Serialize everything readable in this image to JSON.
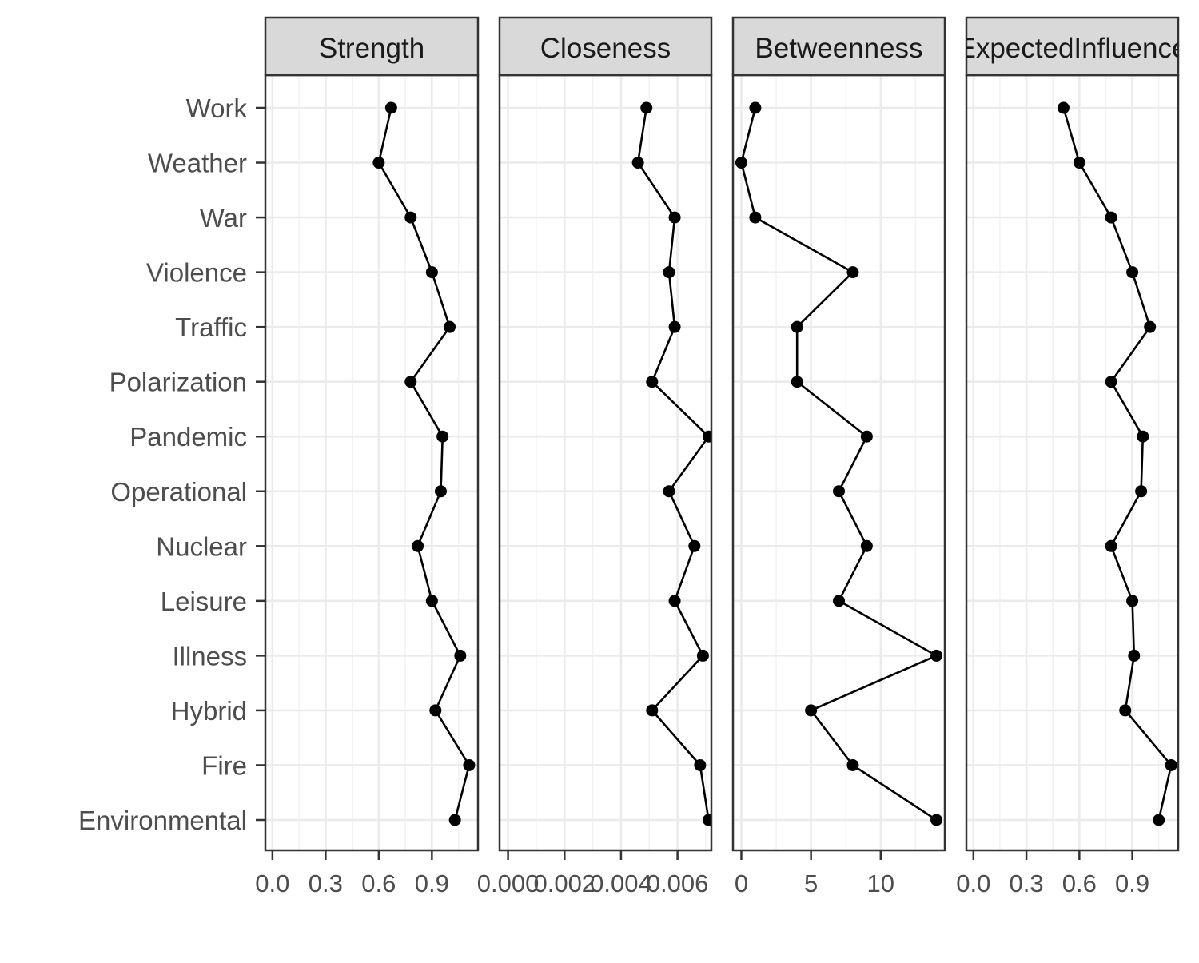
{
  "chart_data": {
    "type": "line",
    "orientation": "horizontal-facets",
    "categories": [
      "Work",
      "Weather",
      "War",
      "Violence",
      "Traffic",
      "Polarization",
      "Pandemic",
      "Operational",
      "Nuclear",
      "Leisure",
      "Illness",
      "Hybrid",
      "Fire",
      "Environmental"
    ],
    "panels": [
      {
        "title": "Strength",
        "xlim": [
          -0.04,
          1.16
        ],
        "ticks": [
          0.0,
          0.3,
          0.6,
          0.9
        ],
        "tick_labels": [
          "0.0",
          "0.3",
          "0.6",
          "0.9"
        ],
        "values": [
          0.67,
          0.6,
          0.78,
          0.9,
          1.0,
          0.78,
          0.96,
          0.95,
          0.82,
          0.9,
          1.06,
          0.92,
          1.11,
          1.03
        ]
      },
      {
        "title": "Closeness",
        "xlim": [
          -0.0003,
          0.0072
        ],
        "ticks": [
          0.0,
          0.002,
          0.004,
          0.006
        ],
        "tick_labels": [
          "0.000",
          "0.002",
          "0.004",
          "0.006"
        ],
        "values": [
          0.0049,
          0.0046,
          0.0059,
          0.0057,
          0.0059,
          0.0051,
          0.0071,
          0.0057,
          0.0066,
          0.0059,
          0.0069,
          0.0051,
          0.0068,
          0.0071
        ]
      },
      {
        "title": "Betweenness",
        "xlim": [
          -0.6,
          14.6
        ],
        "ticks": [
          0,
          5,
          10
        ],
        "tick_labels": [
          "0",
          "5",
          "10"
        ],
        "values": [
          1,
          0,
          1,
          8,
          4,
          4,
          9,
          7,
          9,
          7,
          14,
          5,
          8,
          14
        ]
      },
      {
        "title": "ExpectedInfluence",
        "xlim": [
          -0.04,
          1.16
        ],
        "ticks": [
          0.0,
          0.3,
          0.6,
          0.9
        ],
        "tick_labels": [
          "0.0",
          "0.3",
          "0.6",
          "0.9"
        ],
        "values": [
          0.51,
          0.6,
          0.78,
          0.9,
          1.0,
          0.78,
          0.96,
          0.95,
          0.78,
          0.9,
          0.91,
          0.86,
          1.12,
          1.05
        ]
      }
    ],
    "grid": true,
    "theme": "bw",
    "colors": {
      "line": "#000000",
      "point": "#000000",
      "strip_fill": "#d9d9d9",
      "panel_border": "#333333",
      "grid_major": "#ebebeb",
      "grid_minor": "#f2f2f2",
      "label": "#4d4d4d"
    }
  }
}
